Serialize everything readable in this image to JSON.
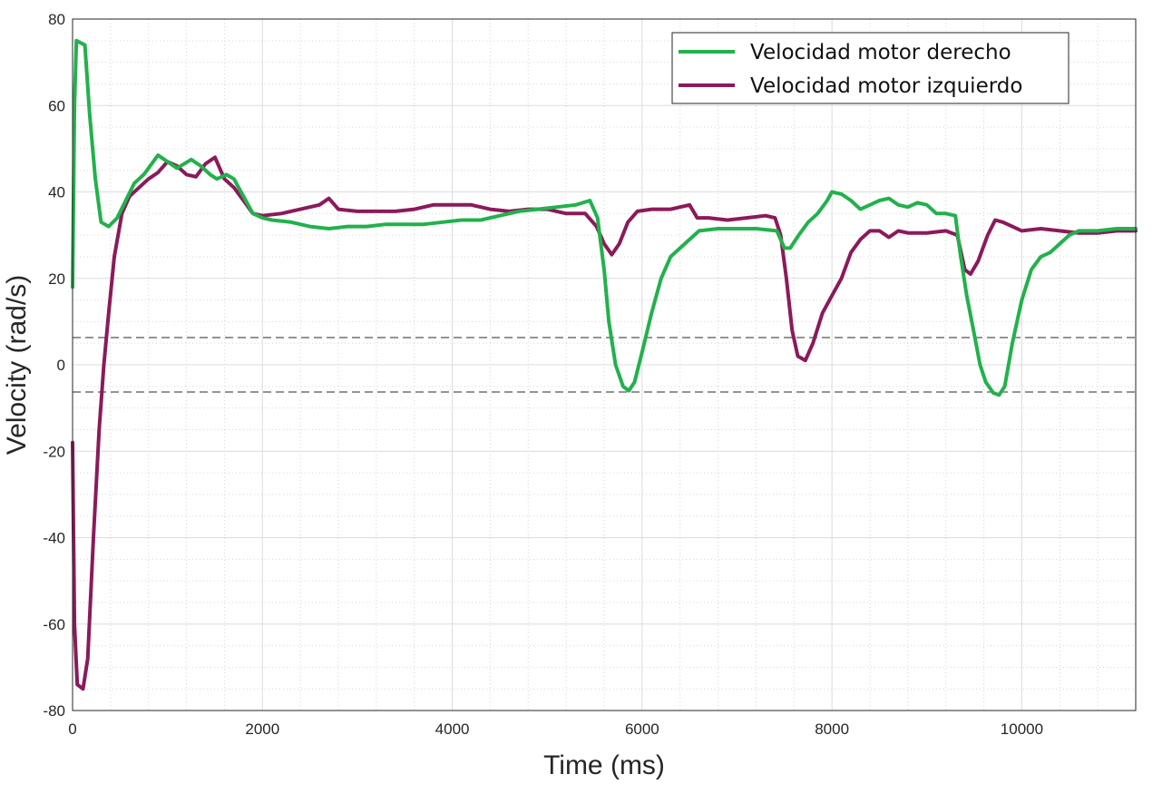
{
  "chart_data": {
    "type": "line",
    "xlabel": "Time (ms)",
    "ylabel": "Velocity (rad/s)",
    "xlim": [
      0,
      11200
    ],
    "ylim": [
      -80,
      80
    ],
    "xticks": [
      0,
      2000,
      4000,
      6000,
      8000,
      10000
    ],
    "yticks": [
      -80,
      -60,
      -40,
      -20,
      0,
      20,
      40,
      60,
      80
    ],
    "grid": true,
    "minor_grid": true,
    "legend_position": "top-right",
    "reference_lines": [
      6.3,
      -6.3
    ],
    "series": [
      {
        "name": "Velocidad motor derecho",
        "color": "#22b14c",
        "points": [
          [
            0,
            18
          ],
          [
            20,
            60
          ],
          [
            40,
            75
          ],
          [
            130,
            74
          ],
          [
            180,
            58
          ],
          [
            240,
            43
          ],
          [
            300,
            33
          ],
          [
            380,
            32
          ],
          [
            470,
            34
          ],
          [
            560,
            38
          ],
          [
            650,
            42
          ],
          [
            750,
            44
          ],
          [
            900,
            48.5
          ],
          [
            1000,
            47
          ],
          [
            1100,
            45.5
          ],
          [
            1250,
            47.5
          ],
          [
            1350,
            46
          ],
          [
            1450,
            44
          ],
          [
            1520,
            43
          ],
          [
            1620,
            44
          ],
          [
            1700,
            43
          ],
          [
            1800,
            39
          ],
          [
            1900,
            35
          ],
          [
            2000,
            34
          ],
          [
            2100,
            33.5
          ],
          [
            2300,
            33
          ],
          [
            2500,
            32
          ],
          [
            2700,
            31.5
          ],
          [
            2900,
            32
          ],
          [
            3100,
            32
          ],
          [
            3300,
            32.5
          ],
          [
            3500,
            32.5
          ],
          [
            3700,
            32.5
          ],
          [
            3900,
            33
          ],
          [
            4100,
            33.5
          ],
          [
            4300,
            33.5
          ],
          [
            4500,
            34.5
          ],
          [
            4700,
            35.5
          ],
          [
            4900,
            36
          ],
          [
            5100,
            36.5
          ],
          [
            5300,
            37
          ],
          [
            5450,
            38
          ],
          [
            5530,
            34
          ],
          [
            5600,
            22
          ],
          [
            5650,
            10
          ],
          [
            5720,
            0
          ],
          [
            5800,
            -5
          ],
          [
            5860,
            -6
          ],
          [
            5920,
            -4
          ],
          [
            6000,
            3
          ],
          [
            6100,
            12
          ],
          [
            6200,
            20
          ],
          [
            6300,
            25
          ],
          [
            6400,
            27
          ],
          [
            6500,
            29
          ],
          [
            6600,
            31
          ],
          [
            6800,
            31.5
          ],
          [
            7000,
            31.5
          ],
          [
            7200,
            31.5
          ],
          [
            7420,
            31
          ],
          [
            7500,
            27
          ],
          [
            7560,
            27
          ],
          [
            7650,
            30
          ],
          [
            7750,
            33
          ],
          [
            7850,
            35
          ],
          [
            7950,
            38
          ],
          [
            8000,
            40
          ],
          [
            8100,
            39.5
          ],
          [
            8200,
            38
          ],
          [
            8300,
            36
          ],
          [
            8400,
            37
          ],
          [
            8500,
            38
          ],
          [
            8600,
            38.5
          ],
          [
            8700,
            37
          ],
          [
            8800,
            36.5
          ],
          [
            8900,
            37.5
          ],
          [
            9000,
            37
          ],
          [
            9100,
            35
          ],
          [
            9200,
            35
          ],
          [
            9300,
            34.5
          ],
          [
            9350,
            26
          ],
          [
            9420,
            16
          ],
          [
            9500,
            7
          ],
          [
            9560,
            0
          ],
          [
            9620,
            -4
          ],
          [
            9700,
            -6.5
          ],
          [
            9760,
            -7
          ],
          [
            9820,
            -5
          ],
          [
            9900,
            5
          ],
          [
            10000,
            15
          ],
          [
            10100,
            22
          ],
          [
            10200,
            25
          ],
          [
            10300,
            26
          ],
          [
            10400,
            28
          ],
          [
            10500,
            30
          ],
          [
            10600,
            31
          ],
          [
            10800,
            31
          ],
          [
            11000,
            31.5
          ],
          [
            11200,
            31.5
          ]
        ]
      },
      {
        "name": "Velocidad motor izquierdo",
        "color": "#8b1a5a",
        "points": [
          [
            0,
            -18
          ],
          [
            20,
            -60
          ],
          [
            50,
            -74
          ],
          [
            110,
            -75
          ],
          [
            160,
            -68
          ],
          [
            220,
            -40
          ],
          [
            280,
            -15
          ],
          [
            330,
            0
          ],
          [
            380,
            12
          ],
          [
            440,
            25
          ],
          [
            520,
            35
          ],
          [
            600,
            39
          ],
          [
            700,
            41
          ],
          [
            800,
            43
          ],
          [
            900,
            44.5
          ],
          [
            1000,
            47
          ],
          [
            1100,
            46
          ],
          [
            1200,
            44
          ],
          [
            1300,
            43.5
          ],
          [
            1400,
            46.5
          ],
          [
            1500,
            48
          ],
          [
            1600,
            43
          ],
          [
            1700,
            41
          ],
          [
            1800,
            38
          ],
          [
            1900,
            35
          ],
          [
            2000,
            34.5
          ],
          [
            2200,
            35
          ],
          [
            2400,
            36
          ],
          [
            2600,
            37
          ],
          [
            2700,
            38.5
          ],
          [
            2800,
            36
          ],
          [
            3000,
            35.5
          ],
          [
            3200,
            35.5
          ],
          [
            3400,
            35.5
          ],
          [
            3600,
            36
          ],
          [
            3800,
            37
          ],
          [
            4000,
            37
          ],
          [
            4200,
            37
          ],
          [
            4400,
            36
          ],
          [
            4600,
            35.5
          ],
          [
            4800,
            36
          ],
          [
            5000,
            36
          ],
          [
            5200,
            35
          ],
          [
            5400,
            35
          ],
          [
            5520,
            32
          ],
          [
            5600,
            28
          ],
          [
            5680,
            25.5
          ],
          [
            5760,
            28
          ],
          [
            5850,
            33
          ],
          [
            5950,
            35.5
          ],
          [
            6100,
            36
          ],
          [
            6300,
            36
          ],
          [
            6500,
            37
          ],
          [
            6580,
            34
          ],
          [
            6700,
            34
          ],
          [
            6900,
            33.5
          ],
          [
            7100,
            34
          ],
          [
            7300,
            34.5
          ],
          [
            7400,
            34
          ],
          [
            7460,
            30
          ],
          [
            7520,
            20
          ],
          [
            7580,
            8
          ],
          [
            7640,
            2
          ],
          [
            7720,
            1
          ],
          [
            7800,
            5
          ],
          [
            7900,
            12
          ],
          [
            8000,
            16
          ],
          [
            8100,
            20
          ],
          [
            8200,
            26
          ],
          [
            8300,
            29
          ],
          [
            8400,
            31
          ],
          [
            8500,
            31
          ],
          [
            8600,
            29.5
          ],
          [
            8700,
            31
          ],
          [
            8800,
            30.5
          ],
          [
            9000,
            30.5
          ],
          [
            9200,
            31
          ],
          [
            9320,
            30
          ],
          [
            9400,
            22
          ],
          [
            9460,
            21
          ],
          [
            9540,
            24
          ],
          [
            9640,
            30
          ],
          [
            9720,
            33.5
          ],
          [
            9800,
            33
          ],
          [
            9900,
            32
          ],
          [
            10000,
            31
          ],
          [
            10200,
            31.5
          ],
          [
            10400,
            31
          ],
          [
            10600,
            30.5
          ],
          [
            10800,
            30.5
          ],
          [
            11000,
            31
          ],
          [
            11200,
            31
          ]
        ]
      }
    ]
  }
}
